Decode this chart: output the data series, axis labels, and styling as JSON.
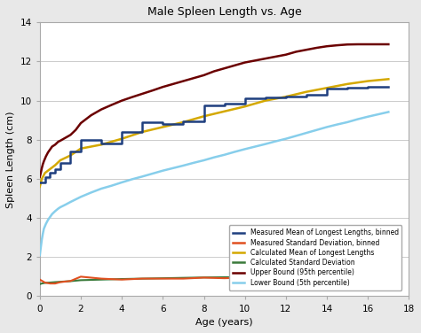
{
  "title": "Male Spleen Length vs. Age",
  "xlabel": "Age (years)",
  "ylabel": "Spleen Length (cm)",
  "xlim": [
    0,
    18
  ],
  "ylim": [
    0,
    14
  ],
  "xticks": [
    0,
    2,
    4,
    6,
    8,
    10,
    12,
    14,
    16,
    18
  ],
  "yticks": [
    0,
    2,
    4,
    6,
    8,
    10,
    12,
    14
  ],
  "background_color": "#e8e8e8",
  "plot_bg_color": "#ffffff",
  "measured_mean_x": [
    0.0,
    0.25,
    0.5,
    0.75,
    1.0,
    1.5,
    2.0,
    3.0,
    4.0,
    5.0,
    6.0,
    7.0,
    8.0,
    9.0,
    10.0,
    11.0,
    12.0,
    13.0,
    14.0,
    15.0,
    16.0,
    17.0
  ],
  "measured_mean_y": [
    5.8,
    6.1,
    6.3,
    6.5,
    6.8,
    7.4,
    8.0,
    7.8,
    8.4,
    8.9,
    8.8,
    8.95,
    9.75,
    9.85,
    10.1,
    10.15,
    10.2,
    10.3,
    10.6,
    10.65,
    10.7,
    10.7
  ],
  "measured_mean_color": "#1f3f7f",
  "measured_sd_x": [
    0.0,
    0.25,
    0.5,
    0.75,
    1.0,
    1.5,
    2.0,
    3.0,
    4.0,
    5.0,
    6.0,
    7.0,
    8.0,
    9.0,
    10.0,
    11.0,
    12.0,
    13.0,
    14.0,
    15.0,
    16.0,
    17.0
  ],
  "measured_sd_y": [
    0.85,
    0.7,
    0.65,
    0.65,
    0.72,
    0.78,
    1.0,
    0.9,
    0.85,
    0.9,
    0.9,
    0.9,
    0.95,
    0.92,
    0.95,
    0.9,
    1.0,
    0.9,
    0.85,
    0.8,
    0.85,
    0.9
  ],
  "measured_sd_color": "#e05020",
  "calc_mean_x": [
    0.0,
    0.1,
    0.25,
    0.5,
    0.75,
    1.0,
    1.5,
    2.0,
    3.0,
    4.0,
    5.0,
    6.0,
    7.0,
    8.0,
    9.0,
    10.0,
    11.0,
    12.0,
    13.0,
    14.0,
    15.0,
    16.0,
    17.0
  ],
  "calc_mean_y": [
    5.6,
    6.0,
    6.3,
    6.5,
    6.7,
    6.95,
    7.2,
    7.55,
    7.75,
    8.05,
    8.4,
    8.65,
    8.9,
    9.2,
    9.45,
    9.7,
    10.0,
    10.2,
    10.45,
    10.65,
    10.85,
    11.0,
    11.1
  ],
  "calc_mean_color": "#d4a800",
  "calc_sd_x": [
    0.0,
    0.1,
    0.25,
    0.5,
    0.75,
    1.0,
    1.5,
    2.0,
    3.0,
    4.0,
    5.0,
    6.0,
    7.0,
    8.0,
    9.0,
    10.0,
    11.0,
    12.0,
    13.0,
    14.0,
    15.0,
    16.0,
    17.0
  ],
  "calc_sd_y": [
    0.62,
    0.65,
    0.68,
    0.7,
    0.72,
    0.74,
    0.77,
    0.82,
    0.85,
    0.88,
    0.9,
    0.92,
    0.94,
    0.96,
    0.97,
    0.98,
    0.99,
    1.0,
    1.0,
    1.0,
    1.0,
    1.0,
    1.0
  ],
  "calc_sd_color": "#3a7a3a",
  "upper_x": [
    0.0,
    0.05,
    0.1,
    0.15,
    0.2,
    0.3,
    0.4,
    0.5,
    0.6,
    0.75,
    0.9,
    1.0,
    1.25,
    1.5,
    1.75,
    2.0,
    2.5,
    3.0,
    3.5,
    4.0,
    4.5,
    5.0,
    5.5,
    6.0,
    6.5,
    7.0,
    7.5,
    8.0,
    8.5,
    9.0,
    9.5,
    10.0,
    10.5,
    11.0,
    11.5,
    12.0,
    12.5,
    13.0,
    13.5,
    14.0,
    14.5,
    15.0,
    15.5,
    16.0,
    16.5,
    17.0
  ],
  "upper_y": [
    6.1,
    6.3,
    6.55,
    6.75,
    6.9,
    7.15,
    7.35,
    7.5,
    7.65,
    7.75,
    7.9,
    7.95,
    8.1,
    8.25,
    8.5,
    8.85,
    9.25,
    9.55,
    9.78,
    10.0,
    10.18,
    10.35,
    10.52,
    10.7,
    10.85,
    11.0,
    11.15,
    11.3,
    11.5,
    11.65,
    11.8,
    11.95,
    12.05,
    12.15,
    12.25,
    12.35,
    12.5,
    12.6,
    12.7,
    12.78,
    12.83,
    12.87,
    12.88,
    12.88,
    12.88,
    12.88
  ],
  "upper_color": "#6b0000",
  "lower_x": [
    0.0,
    0.05,
    0.1,
    0.15,
    0.2,
    0.3,
    0.4,
    0.5,
    0.6,
    0.75,
    0.9,
    1.0,
    1.25,
    1.5,
    1.75,
    2.0,
    2.5,
    3.0,
    3.5,
    4.0,
    4.5,
    5.0,
    5.5,
    6.0,
    6.5,
    7.0,
    7.5,
    8.0,
    8.5,
    9.0,
    9.5,
    10.0,
    10.5,
    11.0,
    11.5,
    12.0,
    12.5,
    13.0,
    13.5,
    14.0,
    14.5,
    15.0,
    15.5,
    16.0,
    16.5,
    17.0
  ],
  "lower_y": [
    2.1,
    2.5,
    2.9,
    3.2,
    3.45,
    3.7,
    3.9,
    4.05,
    4.2,
    4.35,
    4.48,
    4.55,
    4.68,
    4.82,
    4.95,
    5.08,
    5.3,
    5.5,
    5.65,
    5.82,
    5.98,
    6.12,
    6.27,
    6.42,
    6.55,
    6.68,
    6.82,
    6.95,
    7.1,
    7.23,
    7.38,
    7.52,
    7.65,
    7.78,
    7.92,
    8.05,
    8.2,
    8.35,
    8.5,
    8.65,
    8.78,
    8.9,
    9.05,
    9.18,
    9.3,
    9.42
  ],
  "lower_color": "#87CEEB",
  "legend_labels": [
    "Measured Mean of Longest Lengths, binned",
    "Measured Standard Deviation, binned",
    "Calculated Mean of Longest Lengths",
    "Calculated Standard Deviation",
    "Upper Bound (95th percentile)",
    "Lower Bound (5th percentile)"
  ],
  "legend_colors": [
    "#1f3f7f",
    "#e05020",
    "#d4a800",
    "#3a7a3a",
    "#6b0000",
    "#87CEEB"
  ]
}
